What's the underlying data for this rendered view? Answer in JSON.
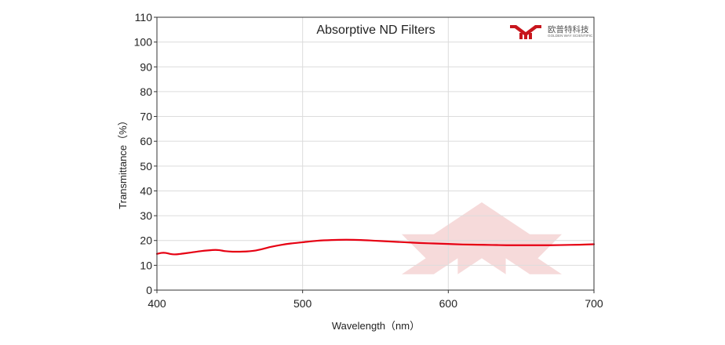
{
  "chart_data": {
    "type": "line",
    "title": "Absorptive ND Filters",
    "xlabel": "Wavelength（nm）",
    "ylabel": "Transmittance（%）",
    "xlim": [
      400,
      700
    ],
    "ylim": [
      0,
      110
    ],
    "x_ticks": [
      400,
      500,
      600,
      700
    ],
    "y_ticks": [
      0,
      10,
      20,
      30,
      40,
      50,
      60,
      70,
      80,
      90,
      100,
      110
    ],
    "grid": true,
    "series": [
      {
        "color": "#e60012",
        "x": [
          400,
          403,
          406,
          409,
          412,
          416,
          420,
          425,
          430,
          435,
          440,
          443,
          447,
          452,
          457,
          462,
          467,
          472,
          478,
          485,
          492,
          500,
          510,
          520,
          530,
          540,
          550,
          560,
          570,
          580,
          590,
          600,
          610,
          620,
          630,
          640,
          650,
          660,
          670,
          680,
          690,
          700
        ],
        "y": [
          14.6,
          15.0,
          15.0,
          14.6,
          14.4,
          14.6,
          14.9,
          15.3,
          15.7,
          16.0,
          16.2,
          16.1,
          15.7,
          15.5,
          15.5,
          15.6,
          15.9,
          16.5,
          17.4,
          18.2,
          18.8,
          19.3,
          19.9,
          20.2,
          20.3,
          20.2,
          19.9,
          19.6,
          19.3,
          19.0,
          18.8,
          18.6,
          18.4,
          18.3,
          18.2,
          18.1,
          18.1,
          18.1,
          18.1,
          18.2,
          18.3,
          18.5
        ]
      }
    ]
  },
  "brand": {
    "name_cn": "欧普特科技",
    "name_en": "GOLDEN WAY SCIENTIFIC",
    "logo_color": "#c8161d",
    "watermark_color": "#f6dada"
  }
}
